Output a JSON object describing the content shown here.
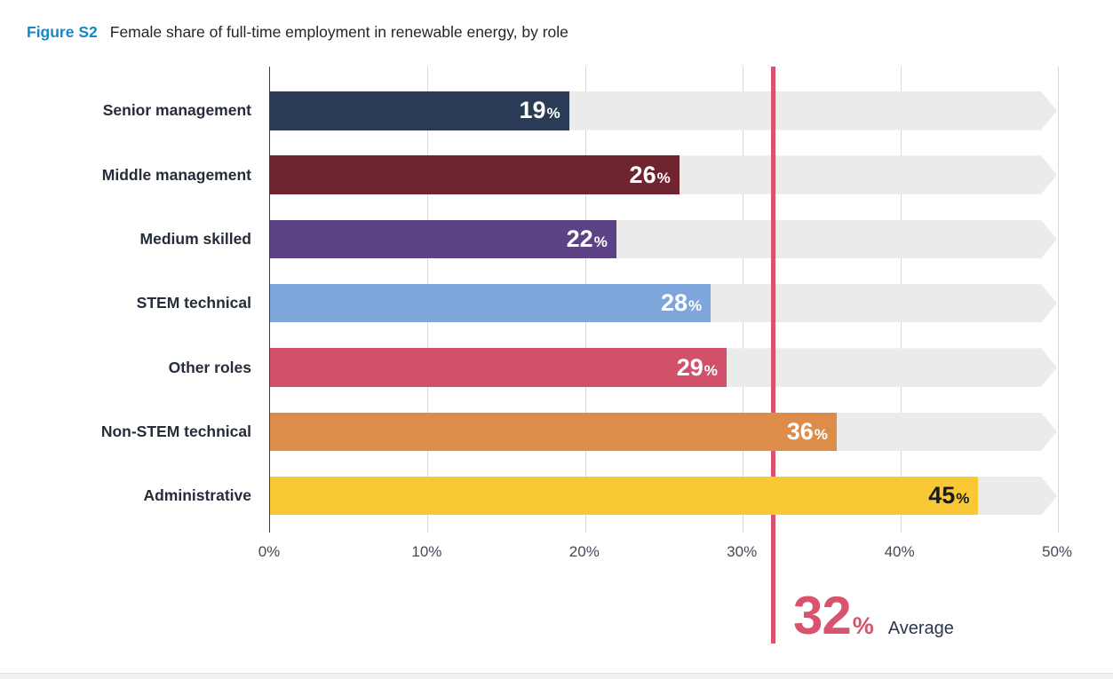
{
  "title": {
    "prefix": "Figure S2",
    "text": "Female share of full-time employment in renewable energy, by role"
  },
  "chart_data": {
    "type": "bar",
    "orientation": "horizontal",
    "title": "Female share of full-time employment in renewable energy, by role",
    "categories": [
      "Senior management",
      "Middle management",
      "Medium skilled",
      "STEM technical",
      "Other roles",
      "Non-STEM technical",
      "Administrative"
    ],
    "values": [
      19,
      26,
      22,
      28,
      29,
      36,
      45
    ],
    "value_suffix": "%",
    "bar_colors": [
      "#2a3c55",
      "#6f2430",
      "#5c4386",
      "#7ea6da",
      "#d05169",
      "#dd8c49",
      "#f8c935"
    ],
    "value_label_colors": [
      "#ffffff",
      "#ffffff",
      "#ffffff",
      "#ffffff",
      "#ffffff",
      "#ffffff",
      "#1b1b1b"
    ],
    "xlim": [
      0,
      50
    ],
    "x_ticks": [
      {
        "value": 0,
        "label": "0%"
      },
      {
        "value": 10,
        "label": "10%"
      },
      {
        "value": 20,
        "label": "20%"
      },
      {
        "value": 30,
        "label": "30%"
      },
      {
        "value": 40,
        "label": "40%"
      },
      {
        "value": 50,
        "label": "50%"
      }
    ],
    "grid": true,
    "track_color": "#ebebeb",
    "average": {
      "value": 32,
      "number_label": "32",
      "suffix": "%",
      "word": "Average",
      "line_color": "#d8536d"
    }
  }
}
